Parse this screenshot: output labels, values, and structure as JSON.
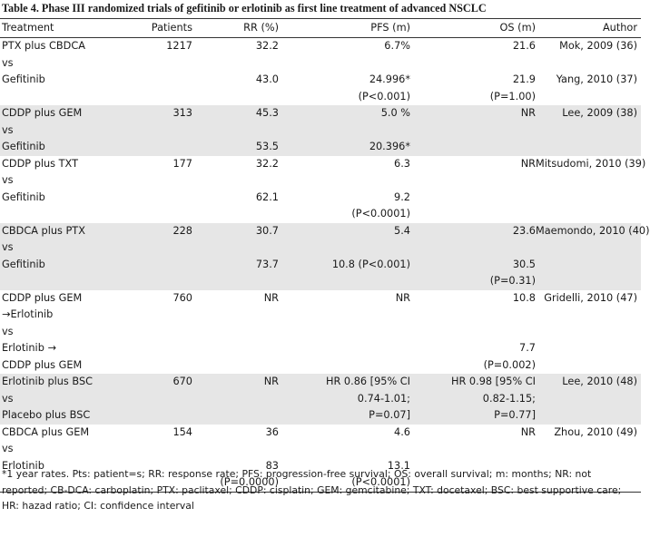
{
  "title": "Table 4. Phase III randomized trials of gefitinib or erlotinib as first line treatment of advanced NSCLC",
  "headers": [
    "Treatment",
    "Patients",
    "RR (%)",
    "PFS (m)",
    "OS (m)",
    "Author"
  ],
  "rows": [
    [
      "PTX plus CBDCA",
      "1217",
      "32.2",
      "6.7%",
      "21.6",
      "Mok, 2009 (36)"
    ],
    [
      "vs",
      "",
      "",
      "",
      "",
      ""
    ],
    [
      "Gefitinib",
      "",
      "43.0",
      "24.996*",
      "21.9",
      "Yang, 2010 (37)"
    ],
    [
      "",
      "",
      "",
      "(P<0.001)",
      "(P=1.00)",
      ""
    ],
    [
      "CDDP plus GEM",
      "313",
      "45.3",
      "5.0 %",
      "NR",
      "Lee, 2009 (38)"
    ],
    [
      "vs",
      "",
      "",
      "",
      "",
      ""
    ],
    [
      "Gefitinib",
      "",
      "53.5",
      "20.396*",
      "",
      ""
    ],
    [
      "CDDP plus TXT",
      "177",
      "32.2",
      "6.3",
      "NR",
      "Mitsudomi, 2010 (39)"
    ],
    [
      "vs",
      "",
      "",
      "",
      "",
      ""
    ],
    [
      "Gefitinib",
      "",
      "62.1",
      "9.2",
      "",
      ""
    ],
    [
      "",
      "",
      "",
      "(P<0.0001)",
      "",
      ""
    ],
    [
      "CBDCA plus PTX",
      "228",
      "30.7",
      "5.4",
      "23.6",
      "Maemondo, 2010 (40)"
    ],
    [
      "vs",
      "",
      "",
      "",
      "",
      ""
    ],
    [
      "Gefitinib",
      "",
      "73.7",
      "10.8 (P<0.001)",
      "30.5",
      ""
    ],
    [
      "",
      "",
      "",
      "",
      "(P=0.31)",
      ""
    ],
    [
      "CDDP plus GEM",
      "760",
      "NR",
      "NR",
      "10.8",
      "Gridelli, 2010 (47)"
    ],
    [
      "→Erlotinib",
      "",
      "",
      "",
      "",
      ""
    ],
    [
      "vs",
      "",
      "",
      "",
      "",
      ""
    ],
    [
      "Erlotinib →",
      "",
      "",
      "",
      "7.7",
      ""
    ],
    [
      "CDDP plus GEM",
      "",
      "",
      "",
      "(P=0.002)",
      ""
    ],
    [
      "Erlotinib plus BSC",
      "670",
      "NR",
      "HR 0.86 [95% CI",
      "HR 0.98 [95% CI",
      "Lee, 2010 (48)"
    ],
    [
      "vs",
      "",
      "",
      "0.74-1.01;",
      "0.82-1.15;",
      ""
    ],
    [
      "Placebo plus BSC",
      "",
      "",
      "P=0.07]",
      "P=0.77]",
      ""
    ],
    [
      "CBDCA plus GEM",
      "154",
      "36",
      "4.6",
      "NR",
      "Zhou, 2010 (49)"
    ],
    [
      "vs",
      "",
      "",
      "",
      "",
      ""
    ],
    [
      "Erlotinib",
      "",
      "83",
      "13.1",
      "",
      ""
    ],
    [
      "",
      "",
      "(P=0.0000)",
      "(P<0.0001)",
      "",
      ""
    ]
  ],
  "footnote": "*1 year rates. Pts: patient=s; RR: response rate; PFS: progression-free survival; OS: overall survival; m: months; NR: not reported; CB-DCA: carboplatin; PTX: paclitaxel; CDDP: cisplatin; GEM: gemcitabine; TXT: docetaxel; BSC: best supportive care; HR: hazad ratio; CI: confidence interval"
}
